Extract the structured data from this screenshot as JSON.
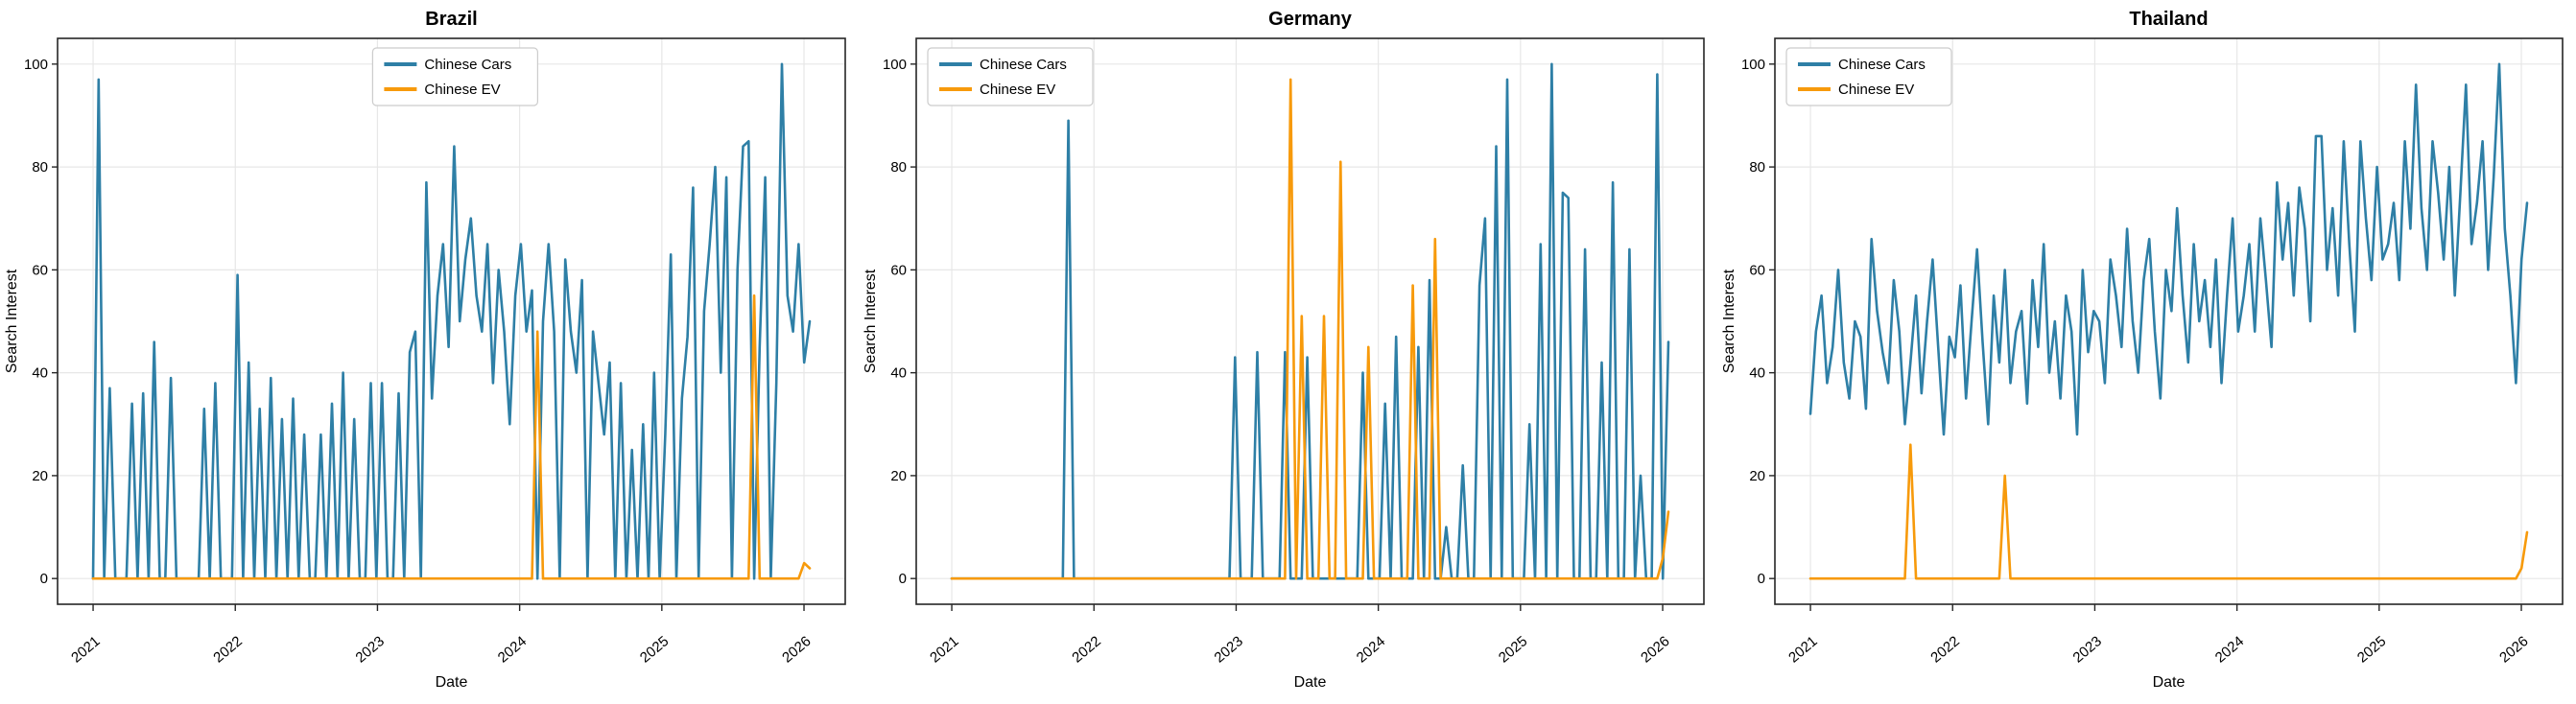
{
  "figure": {
    "background": "#ffffff",
    "subplot_titles": [
      "Brazil",
      "Germany",
      "Thailand"
    ],
    "xlabel": "Date",
    "ylabel": "Search Interest"
  },
  "colors": {
    "chinese_cars": "#2e7fa6",
    "chinese_ev": "#f79a0b",
    "grid": "#e7e7e7",
    "spine": "#262626",
    "tick": "#262626",
    "text": "#000000",
    "legend_border": "#cccccc",
    "legend_bg": "#ffffff"
  },
  "legend": {
    "items": [
      {
        "label": "Chinese Cars",
        "color_key": "chinese_cars"
      },
      {
        "label": "Chinese EV",
        "color_key": "chinese_ev"
      }
    ]
  },
  "chart_data": [
    {
      "type": "line",
      "title": "Brazil",
      "xlabel": "Date",
      "ylabel": "Search Interest",
      "x_tick_values": [
        2021,
        2022,
        2023,
        2024,
        2025,
        2026
      ],
      "x_tick_labels": [
        "2021",
        "2022",
        "2023",
        "2024",
        "2025",
        "2026"
      ],
      "y_ticks": [
        0,
        20,
        40,
        60,
        80,
        100
      ],
      "xlim": [
        2020.75,
        2026.29
      ],
      "ylim": [
        -5,
        105
      ],
      "grid": true,
      "legend_position": "upper center",
      "x": {
        "unit": "decimal_year",
        "start": 2021.0,
        "step": 0.03907,
        "n": 130
      },
      "series": [
        {
          "name": "Chinese Cars",
          "color_key": "chinese_cars",
          "values": [
            0,
            97,
            0,
            37,
            0,
            0,
            0,
            34,
            0,
            36,
            0,
            46,
            0,
            0,
            39,
            0,
            0,
            0,
            0,
            0,
            33,
            0,
            38,
            0,
            0,
            0,
            59,
            0,
            42,
            0,
            33,
            0,
            39,
            0,
            31,
            0,
            35,
            0,
            28,
            0,
            0,
            28,
            0,
            34,
            0,
            40,
            0,
            31,
            0,
            0,
            38,
            0,
            38,
            0,
            0,
            36,
            0,
            44,
            48,
            0,
            77,
            35,
            55,
            65,
            45,
            84,
            50,
            62,
            70,
            55,
            48,
            65,
            38,
            60,
            48,
            30,
            55,
            65,
            48,
            56,
            0,
            50,
            65,
            48,
            0,
            62,
            48,
            40,
            58,
            0,
            48,
            38,
            28,
            42,
            0,
            38,
            0,
            25,
            0,
            30,
            0,
            40,
            0,
            28,
            63,
            0,
            35,
            47,
            76,
            0,
            52,
            65,
            80,
            40,
            78,
            0,
            60,
            84,
            85,
            0,
            45,
            78,
            0,
            38,
            100,
            55,
            48,
            65,
            42,
            50
          ]
        },
        {
          "name": "Chinese EV",
          "color_key": "chinese_ev",
          "values": [
            0,
            0,
            0,
            0,
            0,
            0,
            0,
            0,
            0,
            0,
            0,
            0,
            0,
            0,
            0,
            0,
            0,
            0,
            0,
            0,
            0,
            0,
            0,
            0,
            0,
            0,
            0,
            0,
            0,
            0,
            0,
            0,
            0,
            0,
            0,
            0,
            0,
            0,
            0,
            0,
            0,
            0,
            0,
            0,
            0,
            0,
            0,
            0,
            0,
            0,
            0,
            0,
            0,
            0,
            0,
            0,
            0,
            0,
            0,
            0,
            0,
            0,
            0,
            0,
            0,
            0,
            0,
            0,
            0,
            0,
            0,
            0,
            0,
            0,
            0,
            0,
            0,
            0,
            0,
            0,
            48,
            0,
            0,
            0,
            0,
            0,
            0,
            0,
            0,
            0,
            0,
            0,
            0,
            0,
            0,
            0,
            0,
            0,
            0,
            0,
            0,
            0,
            0,
            0,
            0,
            0,
            0,
            0,
            0,
            0,
            0,
            0,
            0,
            0,
            0,
            0,
            0,
            0,
            0,
            55,
            0,
            0,
            0,
            0,
            0,
            0,
            0,
            0,
            3,
            2
          ]
        }
      ]
    },
    {
      "type": "line",
      "title": "Germany",
      "xlabel": "Date",
      "ylabel": "Search Interest",
      "x_tick_values": [
        2021,
        2022,
        2023,
        2024,
        2025,
        2026
      ],
      "x_tick_labels": [
        "2021",
        "2022",
        "2023",
        "2024",
        "2025",
        "2026"
      ],
      "y_ticks": [
        0,
        20,
        40,
        60,
        80,
        100
      ],
      "xlim": [
        2020.75,
        2026.29
      ],
      "ylim": [
        -5,
        105
      ],
      "grid": true,
      "legend_position": "upper left",
      "x": {
        "unit": "decimal_year",
        "start": 2021.0,
        "step": 0.03907,
        "n": 130
      },
      "series": [
        {
          "name": "Chinese Cars",
          "color_key": "chinese_cars",
          "values": [
            0,
            0,
            0,
            0,
            0,
            0,
            0,
            0,
            0,
            0,
            0,
            0,
            0,
            0,
            0,
            0,
            0,
            0,
            0,
            0,
            0,
            89,
            0,
            0,
            0,
            0,
            0,
            0,
            0,
            0,
            0,
            0,
            0,
            0,
            0,
            0,
            0,
            0,
            0,
            0,
            0,
            0,
            0,
            0,
            0,
            0,
            0,
            0,
            0,
            0,
            0,
            43,
            0,
            0,
            0,
            44,
            0,
            0,
            0,
            0,
            44,
            0,
            0,
            0,
            43,
            0,
            0,
            0,
            0,
            0,
            0,
            0,
            0,
            0,
            40,
            0,
            0,
            0,
            34,
            0,
            47,
            0,
            0,
            0,
            45,
            0,
            58,
            0,
            0,
            10,
            0,
            0,
            22,
            0,
            0,
            57,
            70,
            0,
            84,
            0,
            97,
            0,
            0,
            0,
            30,
            0,
            65,
            0,
            100,
            0,
            75,
            74,
            0,
            0,
            64,
            0,
            0,
            42,
            0,
            77,
            0,
            0,
            64,
            0,
            20,
            0,
            0,
            98,
            0,
            46
          ]
        },
        {
          "name": "Chinese EV",
          "color_key": "chinese_ev",
          "values": [
            0,
            0,
            0,
            0,
            0,
            0,
            0,
            0,
            0,
            0,
            0,
            0,
            0,
            0,
            0,
            0,
            0,
            0,
            0,
            0,
            0,
            0,
            0,
            0,
            0,
            0,
            0,
            0,
            0,
            0,
            0,
            0,
            0,
            0,
            0,
            0,
            0,
            0,
            0,
            0,
            0,
            0,
            0,
            0,
            0,
            0,
            0,
            0,
            0,
            0,
            0,
            0,
            0,
            0,
            0,
            0,
            0,
            0,
            0,
            0,
            0,
            97,
            0,
            51,
            0,
            0,
            0,
            51,
            0,
            0,
            81,
            0,
            0,
            0,
            0,
            45,
            0,
            0,
            0,
            0,
            0,
            0,
            0,
            57,
            0,
            0,
            0,
            66,
            0,
            0,
            0,
            0,
            0,
            0,
            0,
            0,
            0,
            0,
            0,
            0,
            0,
            0,
            0,
            0,
            0,
            0,
            0,
            0,
            0,
            0,
            0,
            0,
            0,
            0,
            0,
            0,
            0,
            0,
            0,
            0,
            0,
            0,
            0,
            0,
            0,
            0,
            0,
            0,
            4,
            13
          ]
        }
      ]
    },
    {
      "type": "line",
      "title": "Thailand",
      "xlabel": "Date",
      "ylabel": "Search Interest",
      "x_tick_values": [
        2021,
        2022,
        2023,
        2024,
        2025,
        2026
      ],
      "x_tick_labels": [
        "2021",
        "2022",
        "2023",
        "2024",
        "2025",
        "2026"
      ],
      "y_ticks": [
        0,
        20,
        40,
        60,
        80,
        100
      ],
      "xlim": [
        2020.75,
        2026.29
      ],
      "ylim": [
        -5,
        105
      ],
      "grid": true,
      "legend_position": "upper left",
      "x": {
        "unit": "decimal_year",
        "start": 2021.0,
        "step": 0.03907,
        "n": 130
      },
      "series": [
        {
          "name": "Chinese Cars",
          "color_key": "chinese_cars",
          "values": [
            32,
            48,
            55,
            38,
            45,
            60,
            42,
            35,
            50,
            47,
            33,
            66,
            52,
            44,
            38,
            58,
            48,
            30,
            42,
            55,
            36,
            50,
            62,
            45,
            28,
            47,
            43,
            57,
            35,
            50,
            64,
            46,
            30,
            55,
            42,
            60,
            38,
            48,
            52,
            34,
            58,
            45,
            65,
            40,
            50,
            35,
            55,
            48,
            28,
            60,
            44,
            52,
            50,
            38,
            62,
            55,
            45,
            68,
            50,
            40,
            58,
            66,
            48,
            35,
            60,
            52,
            72,
            55,
            42,
            65,
            50,
            58,
            45,
            62,
            38,
            55,
            70,
            48,
            55,
            65,
            48,
            70,
            58,
            45,
            77,
            62,
            73,
            55,
            76,
            68,
            50,
            86,
            86,
            60,
            72,
            55,
            85,
            65,
            48,
            85,
            70,
            58,
            80,
            62,
            65,
            73,
            58,
            85,
            68,
            96,
            72,
            60,
            85,
            75,
            62,
            80,
            55,
            75,
            96,
            65,
            73,
            85,
            60,
            78,
            100,
            68,
            55,
            38,
            62,
            73
          ]
        },
        {
          "name": "Chinese EV",
          "color_key": "chinese_ev",
          "values": [
            0,
            0,
            0,
            0,
            0,
            0,
            0,
            0,
            0,
            0,
            0,
            0,
            0,
            0,
            0,
            0,
            0,
            0,
            26,
            0,
            0,
            0,
            0,
            0,
            0,
            0,
            0,
            0,
            0,
            0,
            0,
            0,
            0,
            0,
            0,
            20,
            0,
            0,
            0,
            0,
            0,
            0,
            0,
            0,
            0,
            0,
            0,
            0,
            0,
            0,
            0,
            0,
            0,
            0,
            0,
            0,
            0,
            0,
            0,
            0,
            0,
            0,
            0,
            0,
            0,
            0,
            0,
            0,
            0,
            0,
            0,
            0,
            0,
            0,
            0,
            0,
            0,
            0,
            0,
            0,
            0,
            0,
            0,
            0,
            0,
            0,
            0,
            0,
            0,
            0,
            0,
            0,
            0,
            0,
            0,
            0,
            0,
            0,
            0,
            0,
            0,
            0,
            0,
            0,
            0,
            0,
            0,
            0,
            0,
            0,
            0,
            0,
            0,
            0,
            0,
            0,
            0,
            0,
            0,
            0,
            0,
            0,
            0,
            0,
            0,
            0,
            0,
            0,
            2,
            9
          ]
        }
      ]
    }
  ]
}
